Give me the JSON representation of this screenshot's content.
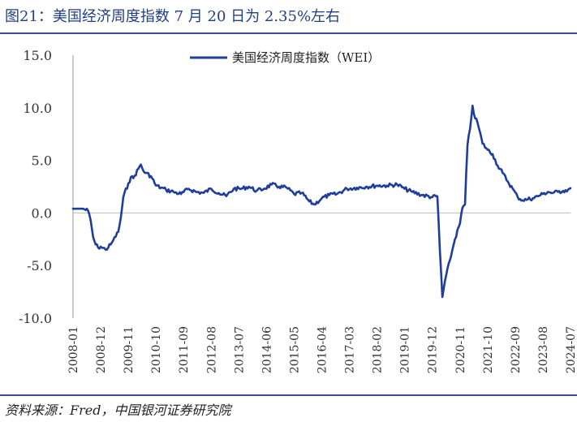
{
  "header": {
    "title": "图21：美国经济周度指数 7 月 20 日为 2.35%左右"
  },
  "footer": {
    "source": "资料来源：Fred，中国银河证券研究院"
  },
  "chart_data": {
    "type": "line",
    "legend": {
      "position": "top-center"
    },
    "series": [
      {
        "name": "美国经济周度指数（WEI）",
        "color": "#1f3d99",
        "points": [
          [
            "2008-01",
            0.4
          ],
          [
            "2008-05",
            0.4
          ],
          [
            "2008-07",
            0.2
          ],
          [
            "2008-08",
            -0.7
          ],
          [
            "2008-09",
            -2.3
          ],
          [
            "2008-10",
            -3.0
          ],
          [
            "2008-11",
            -3.3
          ],
          [
            "2008-12",
            -3.2
          ],
          [
            "2009-02",
            -3.5
          ],
          [
            "2009-04",
            -3.0
          ],
          [
            "2009-05",
            -2.6
          ],
          [
            "2009-07",
            -1.8
          ],
          [
            "2009-08",
            -0.5
          ],
          [
            "2009-09",
            1.5
          ],
          [
            "2009-11",
            2.8
          ],
          [
            "2009-12",
            3.4
          ],
          [
            "2010-01",
            3.3
          ],
          [
            "2010-03",
            4.2
          ],
          [
            "2010-04",
            4.6
          ],
          [
            "2010-05",
            4.0
          ],
          [
            "2010-06",
            3.8
          ],
          [
            "2010-08",
            3.5
          ],
          [
            "2010-10",
            2.6
          ],
          [
            "2010-12",
            2.4
          ],
          [
            "2011-02",
            2.2
          ],
          [
            "2011-05",
            2.0
          ],
          [
            "2011-08",
            1.8
          ],
          [
            "2011-11",
            2.3
          ],
          [
            "2012-02",
            2.0
          ],
          [
            "2012-05",
            1.9
          ],
          [
            "2012-08",
            2.3
          ],
          [
            "2012-11",
            1.9
          ],
          [
            "2013-02",
            1.6
          ],
          [
            "2013-05",
            2.3
          ],
          [
            "2013-08",
            2.3
          ],
          [
            "2013-11",
            2.5
          ],
          [
            "2014-02",
            2.1
          ],
          [
            "2014-05",
            2.3
          ],
          [
            "2014-08",
            2.7
          ],
          [
            "2014-11",
            2.5
          ],
          [
            "2015-02",
            2.4
          ],
          [
            "2015-05",
            1.8
          ],
          [
            "2015-08",
            1.9
          ],
          [
            "2015-11",
            1.1
          ],
          [
            "2016-01",
            0.8
          ],
          [
            "2016-04",
            1.4
          ],
          [
            "2016-07",
            1.7
          ],
          [
            "2016-10",
            1.8
          ],
          [
            "2017-02",
            2.3
          ],
          [
            "2017-06",
            2.4
          ],
          [
            "2017-10",
            2.5
          ],
          [
            "2018-02",
            2.6
          ],
          [
            "2018-06",
            2.6
          ],
          [
            "2018-10",
            2.7
          ],
          [
            "2019-01",
            2.3
          ],
          [
            "2019-04",
            2.0
          ],
          [
            "2019-08",
            1.7
          ],
          [
            "2019-12",
            1.5
          ],
          [
            "2020-02",
            1.6
          ],
          [
            "2020-03",
            -3.5
          ],
          [
            "2020-04",
            -8.0
          ],
          [
            "2020-05",
            -6.5
          ],
          [
            "2020-07",
            -4.5
          ],
          [
            "2020-09",
            -2.5
          ],
          [
            "2020-11",
            -1.0
          ],
          [
            "2020-12",
            0.5
          ],
          [
            "2021-01",
            0.8
          ],
          [
            "2021-02",
            6.5
          ],
          [
            "2021-03",
            8.0
          ],
          [
            "2021-04",
            10.2
          ],
          [
            "2021-05",
            9.0
          ],
          [
            "2021-06",
            8.6
          ],
          [
            "2021-08",
            6.6
          ],
          [
            "2021-10",
            6.0
          ],
          [
            "2021-12",
            5.6
          ],
          [
            "2022-02",
            4.5
          ],
          [
            "2022-04",
            3.8
          ],
          [
            "2022-06",
            3.0
          ],
          [
            "2022-08",
            2.3
          ],
          [
            "2022-10",
            1.5
          ],
          [
            "2022-12",
            1.2
          ],
          [
            "2023-02",
            1.3
          ],
          [
            "2023-04",
            1.4
          ],
          [
            "2023-06",
            1.6
          ],
          [
            "2023-08",
            1.8
          ],
          [
            "2023-10",
            2.0
          ],
          [
            "2023-12",
            1.9
          ],
          [
            "2024-02",
            2.0
          ],
          [
            "2024-04",
            2.1
          ],
          [
            "2024-06",
            2.2
          ],
          [
            "2024-07",
            2.35
          ]
        ]
      }
    ],
    "x_start": "2008-01",
    "x_end": "2024-07",
    "x_tick_labels": [
      "2008-01",
      "2008-12",
      "2009-11",
      "2010-10",
      "2011-09",
      "2012-08",
      "2013-07",
      "2014-06",
      "2015-05",
      "2016-04",
      "2017-03",
      "2018-02",
      "2019-01",
      "2019-12",
      "2020-11",
      "2021-10",
      "2022-09",
      "2023-08",
      "2024-07"
    ],
    "y_tick_labels": [
      "15.0",
      "10.0",
      "5.0",
      "0.0",
      "-5.0",
      "-10.0"
    ],
    "ylim": [
      -10,
      15
    ],
    "y_step": 5,
    "grid": false
  }
}
